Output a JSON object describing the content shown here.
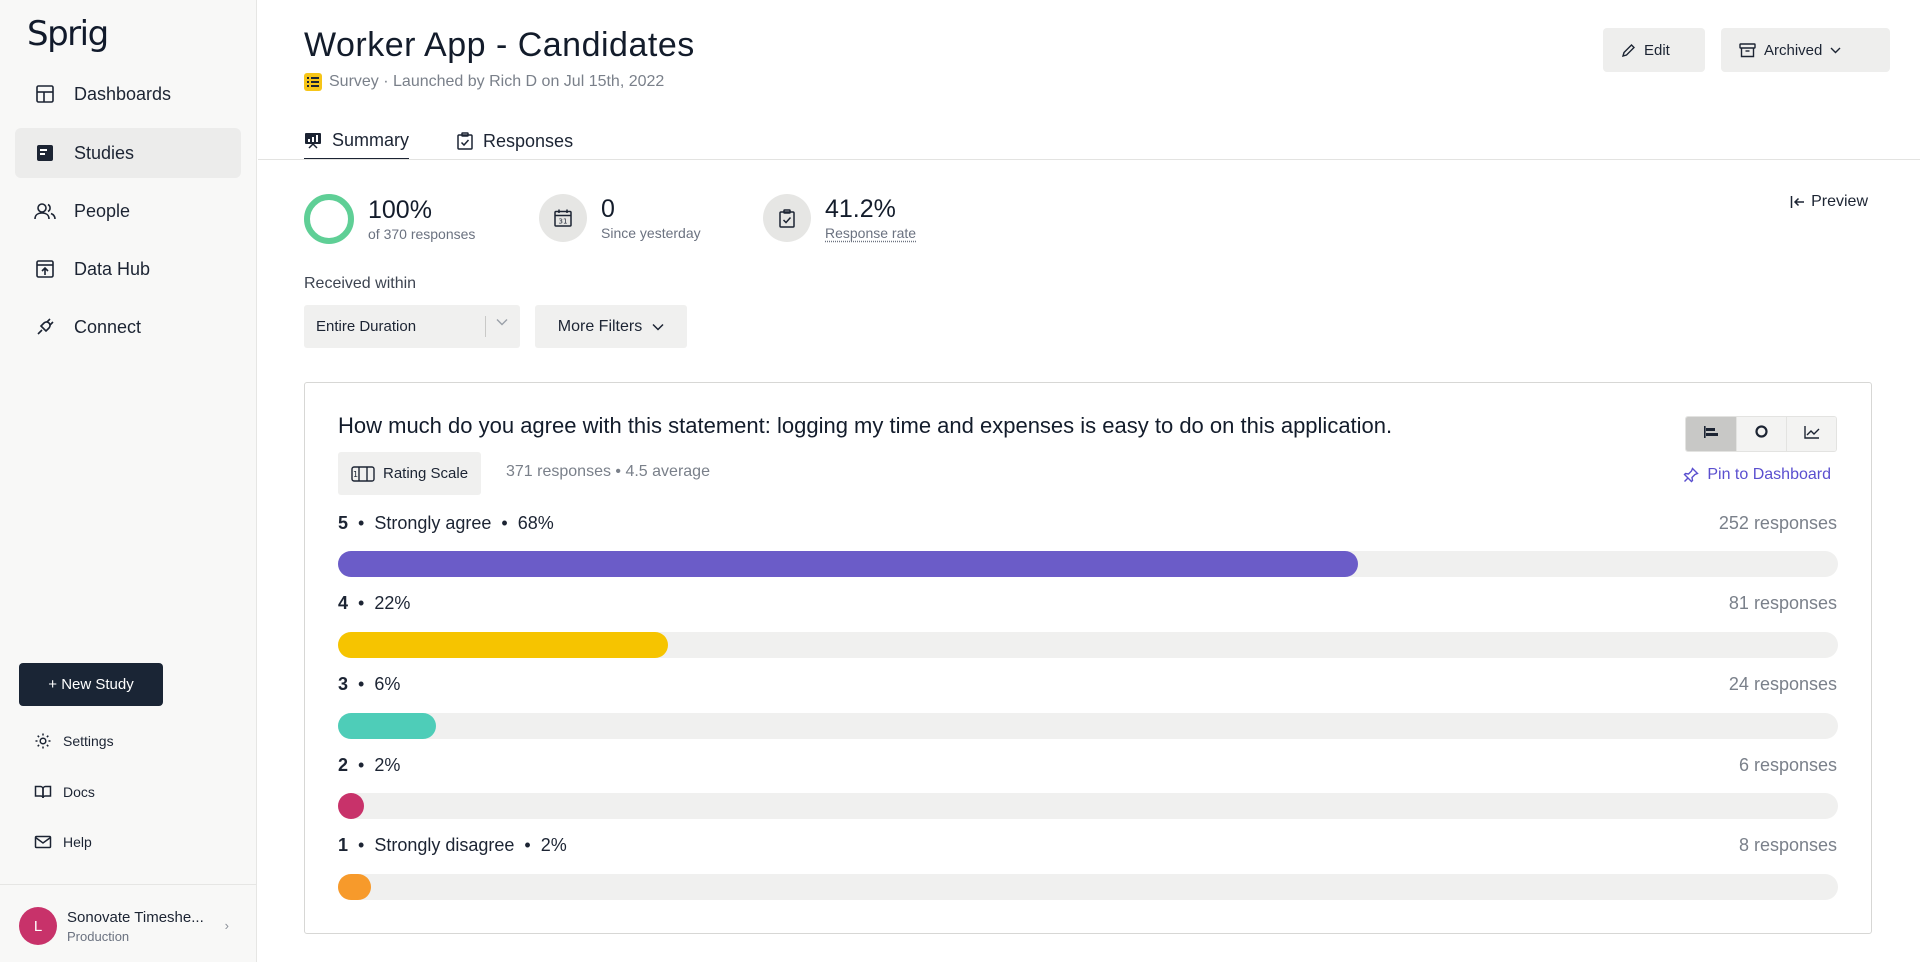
{
  "sidebar": {
    "logo": "Sprig",
    "nav": [
      {
        "label": "Dashboards",
        "icon": "dashboard-icon"
      },
      {
        "label": "Studies",
        "icon": "studies-icon",
        "active": true
      },
      {
        "label": "People",
        "icon": "people-icon"
      },
      {
        "label": "Data Hub",
        "icon": "data-hub-icon"
      },
      {
        "label": "Connect",
        "icon": "plug-icon"
      }
    ],
    "new_study": "+ New Study",
    "utils": [
      {
        "label": "Settings",
        "icon": "gear-icon"
      },
      {
        "label": "Docs",
        "icon": "book-icon"
      },
      {
        "label": "Help",
        "icon": "mail-icon"
      }
    ],
    "account": {
      "initial": "L",
      "name": "Sonovate Timeshe...",
      "env": "Production"
    }
  },
  "header": {
    "title": "Worker App - Candidates",
    "subtitle": "Survey · Launched by Rich D on Jul 15th, 2022",
    "edit_label": "Edit",
    "archive_label": "Archived"
  },
  "tabs": [
    {
      "label": "Summary",
      "active": true
    },
    {
      "label": "Responses",
      "active": false
    }
  ],
  "stats": {
    "completion": {
      "value": "100%",
      "sub": "of 370 responses"
    },
    "today": {
      "value": "0",
      "sub": "Since yesterday"
    },
    "rate": {
      "value": "41.2%",
      "sub": "Response rate"
    }
  },
  "preview_label": "Preview",
  "filters": {
    "label": "Received within",
    "selected": "Entire Duration",
    "more": "More Filters"
  },
  "question": {
    "title": "How much do you agree with this statement: logging my time and expenses is easy to do on this application.",
    "type": "Rating Scale",
    "meta": "371 responses • 4.5 average",
    "pin_label": "Pin to Dashboard",
    "rows": [
      {
        "score": "5",
        "label": "Strongly agree",
        "pct": "68%",
        "count": "252 responses",
        "fraction": 0.68,
        "color": "#6b5cc8"
      },
      {
        "score": "4",
        "label": "",
        "pct": "22%",
        "count": "81 responses",
        "fraction": 0.22,
        "color": "#f6c400"
      },
      {
        "score": "3",
        "label": "",
        "pct": "6%",
        "count": "24 responses",
        "fraction": 0.065,
        "color": "#4ecdb8"
      },
      {
        "score": "2",
        "label": "",
        "pct": "2%",
        "count": "6 responses",
        "fraction": 0.017,
        "color": "#c8326a"
      },
      {
        "score": "1",
        "label": "Strongly disagree",
        "pct": "2%",
        "count": "8 responses",
        "fraction": 0.022,
        "color": "#f79a2b"
      }
    ]
  }
}
